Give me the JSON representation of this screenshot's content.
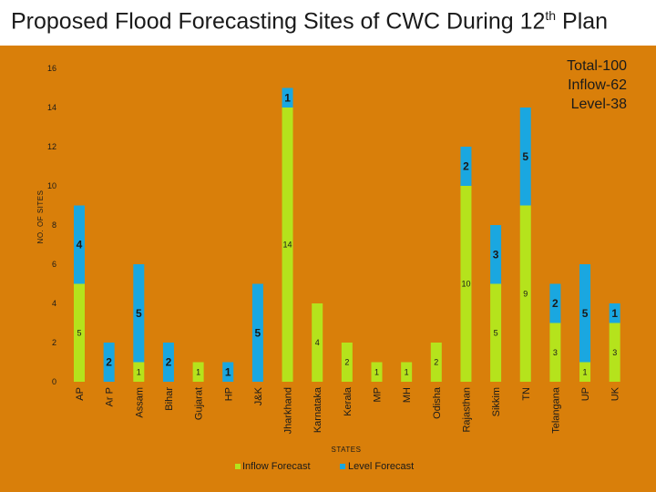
{
  "header": {
    "title_main": "Proposed Flood Forecasting Sites of CWC During 12",
    "title_sup": "th",
    "title_end": " Plan"
  },
  "totals": [
    "Total-100",
    "Inflow-62",
    "Level-38"
  ],
  "colors": {
    "inflow": "#b5e31c",
    "level": "#1aa7e0",
    "background": "#d97f0a"
  },
  "chart_data": {
    "type": "bar",
    "stacked": true,
    "title": "Proposed Flood Forecasting Sites of CWC During 12th Plan",
    "xlabel": "STATES",
    "ylabel": "NO. OF SITES",
    "ylim": [
      0,
      16
    ],
    "yticks": [
      "0",
      "2",
      "4",
      "6",
      "8",
      "10",
      "12",
      "14",
      "16"
    ],
    "grid": false,
    "legend_position": "bottom",
    "categories": [
      "AP",
      "Ar P",
      "Assam",
      "Bihar",
      "Gujarat",
      "HP",
      "J&K",
      "Jharkhand",
      "Karnataka",
      "Kerala",
      "MP",
      "MH",
      "Odisha",
      "Rajasthan",
      "Sikkim",
      "TN",
      "Telangana",
      "UP",
      "UK"
    ],
    "series": [
      {
        "name": "Inflow Forecast",
        "values": [
          5,
          0,
          1,
          0,
          1,
          0,
          0,
          14,
          4,
          2,
          1,
          1,
          2,
          10,
          5,
          9,
          3,
          1,
          3
        ]
      },
      {
        "name": "Level Forecast",
        "values": [
          4,
          2,
          5,
          2,
          0,
          1,
          5,
          1,
          0,
          0,
          0,
          0,
          0,
          2,
          3,
          5,
          2,
          5,
          1
        ]
      }
    ],
    "data_labels": {
      "inflow": [
        "5",
        "",
        "1",
        "",
        "1",
        "",
        "",
        "14",
        "4",
        "2",
        "1",
        "1",
        "2",
        "10",
        "5",
        "9",
        "3",
        "1",
        "3"
      ],
      "level": [
        "4",
        "2",
        "5",
        "2",
        "",
        "1",
        "5",
        "1",
        "",
        "",
        "",
        "",
        "",
        "2",
        "3",
        "5",
        "2",
        "5",
        "1"
      ]
    }
  }
}
